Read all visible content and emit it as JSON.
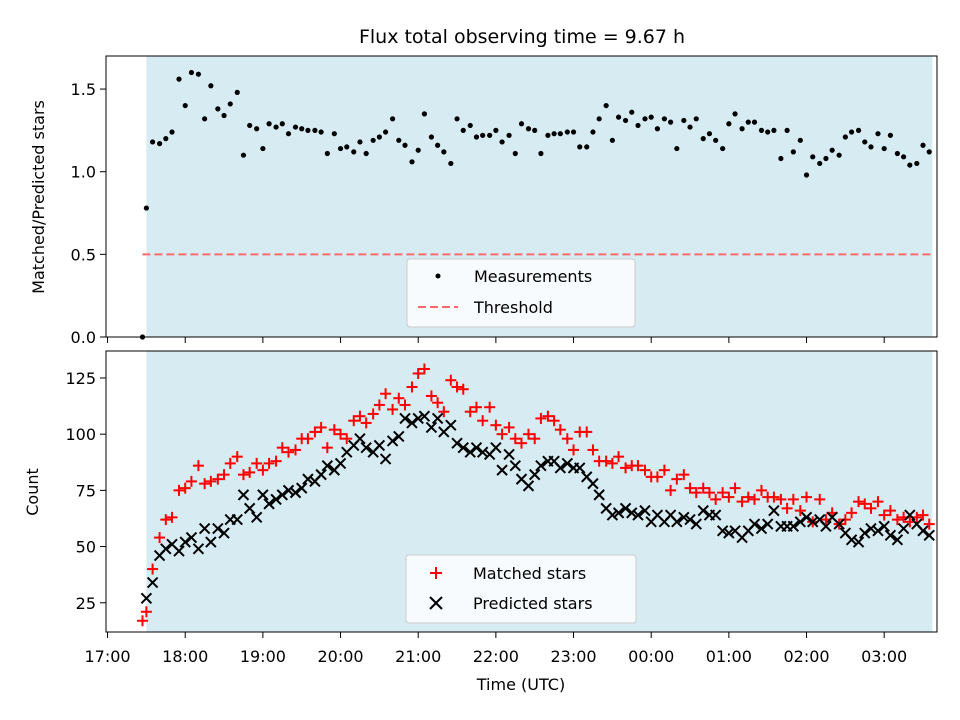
{
  "title": "Flux total observing time = 9.67 h",
  "top": {
    "ylabel": "Matched/Predicted stars",
    "ylim": [
      0,
      1.7
    ],
    "yticks": [
      "0.0",
      "0.5",
      "1.0",
      "1.5"
    ],
    "threshold": 0.5,
    "legend": {
      "measurements": "Measurements",
      "threshold": "Threshold"
    },
    "series": [
      [
        17.45,
        0.0
      ],
      [
        17.5,
        0.78
      ],
      [
        17.58,
        1.18
      ],
      [
        17.67,
        1.17
      ],
      [
        17.75,
        1.2
      ],
      [
        17.83,
        1.24
      ],
      [
        17.92,
        1.56
      ],
      [
        18.0,
        1.4
      ],
      [
        18.08,
        1.6
      ],
      [
        18.17,
        1.59
      ],
      [
        18.25,
        1.32
      ],
      [
        18.33,
        1.52
      ],
      [
        18.42,
        1.38
      ],
      [
        18.5,
        1.34
      ],
      [
        18.58,
        1.41
      ],
      [
        18.67,
        1.48
      ],
      [
        18.75,
        1.1
      ],
      [
        18.83,
        1.28
      ],
      [
        18.92,
        1.26
      ],
      [
        19.0,
        1.14
      ],
      [
        19.08,
        1.29
      ],
      [
        19.17,
        1.27
      ],
      [
        19.25,
        1.29
      ],
      [
        19.33,
        1.23
      ],
      [
        19.42,
        1.27
      ],
      [
        19.5,
        1.26
      ],
      [
        19.58,
        1.25
      ],
      [
        19.67,
        1.25
      ],
      [
        19.75,
        1.24
      ],
      [
        19.83,
        1.11
      ],
      [
        19.92,
        1.23
      ],
      [
        20.0,
        1.14
      ],
      [
        20.08,
        1.15
      ],
      [
        20.17,
        1.12
      ],
      [
        20.25,
        1.18
      ],
      [
        20.33,
        1.11
      ],
      [
        20.42,
        1.19
      ],
      [
        20.5,
        1.21
      ],
      [
        20.58,
        1.24
      ],
      [
        20.67,
        1.32
      ],
      [
        20.75,
        1.19
      ],
      [
        20.83,
        1.16
      ],
      [
        20.92,
        1.06
      ],
      [
        21.0,
        1.13
      ],
      [
        21.08,
        1.35
      ],
      [
        21.17,
        1.21
      ],
      [
        21.25,
        1.16
      ],
      [
        21.33,
        1.12
      ],
      [
        21.42,
        1.05
      ],
      [
        21.5,
        1.32
      ],
      [
        21.58,
        1.25
      ],
      [
        21.67,
        1.28
      ],
      [
        21.75,
        1.21
      ],
      [
        21.83,
        1.22
      ],
      [
        21.92,
        1.22
      ],
      [
        22.0,
        1.25
      ],
      [
        22.08,
        1.18
      ],
      [
        22.17,
        1.22
      ],
      [
        22.25,
        1.11
      ],
      [
        22.33,
        1.29
      ],
      [
        22.42,
        1.26
      ],
      [
        22.5,
        1.25
      ],
      [
        22.58,
        1.11
      ],
      [
        22.67,
        1.22
      ],
      [
        22.75,
        1.23
      ],
      [
        22.83,
        1.23
      ],
      [
        22.92,
        1.24
      ],
      [
        23.0,
        1.24
      ],
      [
        23.08,
        1.15
      ],
      [
        23.17,
        1.15
      ],
      [
        23.25,
        1.24
      ],
      [
        23.33,
        1.32
      ],
      [
        23.42,
        1.4
      ],
      [
        23.5,
        1.19
      ],
      [
        23.58,
        1.33
      ],
      [
        23.67,
        1.31
      ],
      [
        23.75,
        1.36
      ],
      [
        23.83,
        1.28
      ],
      [
        23.92,
        1.32
      ],
      [
        24.0,
        1.33
      ],
      [
        24.08,
        1.26
      ],
      [
        24.17,
        1.32
      ],
      [
        24.25,
        1.3
      ],
      [
        24.33,
        1.14
      ],
      [
        24.42,
        1.31
      ],
      [
        24.5,
        1.27
      ],
      [
        24.58,
        1.32
      ],
      [
        24.67,
        1.2
      ],
      [
        24.75,
        1.23
      ],
      [
        24.83,
        1.19
      ],
      [
        24.92,
        1.14
      ],
      [
        25.0,
        1.29
      ],
      [
        25.08,
        1.35
      ],
      [
        25.17,
        1.26
      ],
      [
        25.25,
        1.3
      ],
      [
        25.33,
        1.3
      ],
      [
        25.42,
        1.25
      ],
      [
        25.5,
        1.24
      ],
      [
        25.58,
        1.25
      ],
      [
        25.67,
        1.08
      ],
      [
        25.75,
        1.25
      ],
      [
        25.83,
        1.12
      ],
      [
        25.92,
        1.19
      ],
      [
        26.0,
        0.98
      ],
      [
        26.08,
        1.09
      ],
      [
        26.17,
        1.05
      ],
      [
        26.25,
        1.08
      ],
      [
        26.33,
        1.13
      ],
      [
        26.42,
        1.1
      ],
      [
        26.5,
        1.21
      ],
      [
        26.58,
        1.24
      ],
      [
        26.67,
        1.25
      ],
      [
        26.75,
        1.18
      ],
      [
        26.83,
        1.15
      ],
      [
        26.92,
        1.23
      ],
      [
        27.0,
        1.14
      ],
      [
        27.08,
        1.22
      ],
      [
        27.17,
        1.11
      ],
      [
        27.25,
        1.09
      ],
      [
        27.33,
        1.04
      ],
      [
        27.42,
        1.05
      ],
      [
        27.5,
        1.16
      ],
      [
        27.58,
        1.12
      ]
    ]
  },
  "chart_data": [
    {
      "type": "scatter",
      "title": "Flux total observing time = 9.67 h",
      "ylabel": "Matched/Predicted stars",
      "ylim": [
        0,
        1.7
      ],
      "legend_placement": "bottom-center",
      "series": [
        {
          "name": "Measurements",
          "ref": "top.series"
        },
        {
          "name": "Threshold",
          "type": "line",
          "y": 0.5
        }
      ]
    },
    {
      "type": "scatter",
      "xlabel": "Time (UTC)",
      "ylabel": "Count",
      "ylim": [
        12,
        137
      ],
      "legend_placement": "bottom-center",
      "series": [
        {
          "name": "Matched stars",
          "ref": "bottom.matched"
        },
        {
          "name": "Predicted stars",
          "ref": "bottom.predicted"
        }
      ]
    }
  ],
  "bottom": {
    "ylabel": "Count",
    "xlabel": "Time (UTC)",
    "ylim": [
      12,
      137
    ],
    "yticks": [
      "25",
      "50",
      "75",
      "100",
      "125"
    ],
    "legend": {
      "matched": "Matched stars",
      "predicted": "Predicted stars"
    },
    "matched": [
      [
        17.45,
        17
      ],
      [
        17.5,
        21
      ],
      [
        17.58,
        40
      ],
      [
        17.67,
        54
      ],
      [
        17.75,
        62
      ],
      [
        17.83,
        63
      ],
      [
        17.92,
        75
      ],
      [
        18.0,
        76
      ],
      [
        18.08,
        79
      ],
      [
        18.17,
        86
      ],
      [
        18.25,
        78
      ],
      [
        18.33,
        79
      ],
      [
        18.42,
        80
      ],
      [
        18.5,
        82
      ],
      [
        18.58,
        87
      ],
      [
        18.67,
        90
      ],
      [
        18.75,
        82
      ],
      [
        18.83,
        83
      ],
      [
        18.92,
        87
      ],
      [
        19.0,
        84
      ],
      [
        19.08,
        87
      ],
      [
        19.17,
        88
      ],
      [
        19.25,
        94
      ],
      [
        19.33,
        92
      ],
      [
        19.42,
        93
      ],
      [
        19.5,
        98
      ],
      [
        19.58,
        98
      ],
      [
        19.67,
        101
      ],
      [
        19.75,
        103
      ],
      [
        19.83,
        94
      ],
      [
        19.92,
        102
      ],
      [
        20.0,
        100
      ],
      [
        20.08,
        98
      ],
      [
        20.17,
        106
      ],
      [
        20.25,
        108
      ],
      [
        20.33,
        105
      ],
      [
        20.42,
        109
      ],
      [
        20.5,
        113
      ],
      [
        20.58,
        118
      ],
      [
        20.67,
        111
      ],
      [
        20.75,
        116
      ],
      [
        20.83,
        113
      ],
      [
        20.92,
        121
      ],
      [
        21.0,
        127
      ],
      [
        21.08,
        129
      ],
      [
        21.17,
        117
      ],
      [
        21.25,
        114
      ],
      [
        21.33,
        110
      ],
      [
        21.42,
        124
      ],
      [
        21.5,
        121
      ],
      [
        21.58,
        120
      ],
      [
        21.67,
        110
      ],
      [
        21.75,
        112
      ],
      [
        21.83,
        106
      ],
      [
        21.92,
        112
      ],
      [
        22.0,
        104
      ],
      [
        22.08,
        100
      ],
      [
        22.17,
        103
      ],
      [
        22.25,
        98
      ],
      [
        22.33,
        96
      ],
      [
        22.42,
        100
      ],
      [
        22.5,
        98
      ],
      [
        22.58,
        107
      ],
      [
        22.67,
        108
      ],
      [
        22.75,
        106
      ],
      [
        22.83,
        102
      ],
      [
        22.92,
        98
      ],
      [
        23.0,
        93
      ],
      [
        23.08,
        101
      ],
      [
        23.17,
        101
      ],
      [
        23.25,
        93
      ],
      [
        23.33,
        88
      ],
      [
        23.42,
        88
      ],
      [
        23.5,
        87
      ],
      [
        23.58,
        90
      ],
      [
        23.67,
        85
      ],
      [
        23.75,
        86
      ],
      [
        23.83,
        86
      ],
      [
        23.92,
        84
      ],
      [
        24.0,
        81
      ],
      [
        24.08,
        81
      ],
      [
        24.17,
        84
      ],
      [
        24.25,
        75
      ],
      [
        24.33,
        80
      ],
      [
        24.42,
        82
      ],
      [
        24.5,
        76
      ],
      [
        24.58,
        74
      ],
      [
        24.67,
        76
      ],
      [
        24.75,
        74
      ],
      [
        24.83,
        71
      ],
      [
        24.92,
        74
      ],
      [
        25.0,
        72
      ],
      [
        25.08,
        76
      ],
      [
        25.17,
        70
      ],
      [
        25.25,
        72
      ],
      [
        25.33,
        71
      ],
      [
        25.42,
        75
      ],
      [
        25.5,
        72
      ],
      [
        25.58,
        72
      ],
      [
        25.67,
        71
      ],
      [
        25.75,
        67
      ],
      [
        25.83,
        71
      ],
      [
        25.92,
        66
      ],
      [
        26.0,
        72
      ],
      [
        26.08,
        61
      ],
      [
        26.17,
        71
      ],
      [
        26.25,
        62
      ],
      [
        26.33,
        65
      ],
      [
        26.42,
        60
      ],
      [
        26.5,
        62
      ],
      [
        26.58,
        65
      ],
      [
        26.67,
        70
      ],
      [
        26.75,
        69
      ],
      [
        26.83,
        67
      ],
      [
        26.92,
        70
      ],
      [
        27.0,
        64
      ],
      [
        27.08,
        66
      ],
      [
        27.17,
        62
      ],
      [
        27.25,
        63
      ],
      [
        27.33,
        61
      ],
      [
        27.42,
        63
      ],
      [
        27.5,
        64
      ],
      [
        27.58,
        60
      ]
    ],
    "predicted": [
      [
        17.5,
        27
      ],
      [
        17.58,
        34
      ],
      [
        17.67,
        46
      ],
      [
        17.75,
        49
      ],
      [
        17.83,
        51
      ],
      [
        17.92,
        48
      ],
      [
        18.0,
        52
      ],
      [
        18.08,
        54
      ],
      [
        18.17,
        49
      ],
      [
        18.25,
        58
      ],
      [
        18.33,
        52
      ],
      [
        18.42,
        58
      ],
      [
        18.5,
        56
      ],
      [
        18.58,
        62
      ],
      [
        18.67,
        62
      ],
      [
        18.75,
        73
      ],
      [
        18.83,
        67
      ],
      [
        18.92,
        63
      ],
      [
        19.0,
        73
      ],
      [
        19.08,
        69
      ],
      [
        19.17,
        71
      ],
      [
        19.25,
        73
      ],
      [
        19.33,
        75
      ],
      [
        19.42,
        74
      ],
      [
        19.5,
        76
      ],
      [
        19.58,
        80
      ],
      [
        19.67,
        79
      ],
      [
        19.75,
        82
      ],
      [
        19.83,
        86
      ],
      [
        19.92,
        84
      ],
      [
        20.0,
        87
      ],
      [
        20.08,
        92
      ],
      [
        20.17,
        95
      ],
      [
        20.25,
        98
      ],
      [
        20.33,
        94
      ],
      [
        20.42,
        92
      ],
      [
        20.5,
        95
      ],
      [
        20.58,
        89
      ],
      [
        20.67,
        97
      ],
      [
        20.75,
        99
      ],
      [
        20.83,
        107
      ],
      [
        20.92,
        105
      ],
      [
        21.0,
        107
      ],
      [
        21.08,
        108
      ],
      [
        21.17,
        103
      ],
      [
        21.25,
        107
      ],
      [
        21.33,
        101
      ],
      [
        21.42,
        104
      ],
      [
        21.5,
        96
      ],
      [
        21.58,
        94
      ],
      [
        21.67,
        92
      ],
      [
        21.75,
        94
      ],
      [
        21.83,
        92
      ],
      [
        21.92,
        91
      ],
      [
        22.0,
        94
      ],
      [
        22.08,
        84
      ],
      [
        22.17,
        91
      ],
      [
        22.25,
        86
      ],
      [
        22.33,
        80
      ],
      [
        22.42,
        77
      ],
      [
        22.5,
        82
      ],
      [
        22.58,
        86
      ],
      [
        22.67,
        88
      ],
      [
        22.75,
        88
      ],
      [
        22.83,
        85
      ],
      [
        22.92,
        87
      ],
      [
        23.0,
        85
      ],
      [
        23.08,
        85
      ],
      [
        23.17,
        81
      ],
      [
        23.25,
        78
      ],
      [
        23.33,
        73
      ],
      [
        23.42,
        67
      ],
      [
        23.5,
        64
      ],
      [
        23.58,
        65
      ],
      [
        23.67,
        67
      ],
      [
        23.75,
        65
      ],
      [
        23.83,
        64
      ],
      [
        23.92,
        66
      ],
      [
        24.0,
        61
      ],
      [
        24.08,
        64
      ],
      [
        24.17,
        61
      ],
      [
        24.25,
        64
      ],
      [
        24.33,
        61
      ],
      [
        24.42,
        63
      ],
      [
        24.5,
        62
      ],
      [
        24.58,
        60
      ],
      [
        24.67,
        66
      ],
      [
        24.75,
        64
      ],
      [
        24.83,
        64
      ],
      [
        24.92,
        57
      ],
      [
        25.0,
        56
      ],
      [
        25.08,
        57
      ],
      [
        25.17,
        54
      ],
      [
        25.25,
        57
      ],
      [
        25.33,
        60
      ],
      [
        25.42,
        58
      ],
      [
        25.5,
        60
      ],
      [
        25.58,
        66
      ],
      [
        25.67,
        59
      ],
      [
        25.75,
        59
      ],
      [
        25.83,
        59
      ],
      [
        25.92,
        61
      ],
      [
        26.0,
        63
      ],
      [
        26.08,
        61
      ],
      [
        26.17,
        62
      ],
      [
        26.25,
        59
      ],
      [
        26.33,
        63
      ],
      [
        26.42,
        60
      ],
      [
        26.5,
        56
      ],
      [
        26.58,
        53
      ],
      [
        26.67,
        52
      ],
      [
        26.75,
        56
      ],
      [
        26.83,
        58
      ],
      [
        26.92,
        57
      ],
      [
        27.0,
        59
      ],
      [
        27.08,
        55
      ],
      [
        27.17,
        53
      ],
      [
        27.25,
        58
      ],
      [
        27.33,
        64
      ],
      [
        27.42,
        60
      ],
      [
        27.5,
        57
      ],
      [
        27.58,
        55
      ]
    ]
  },
  "xaxis": {
    "xlim": [
      16.98,
      27.68
    ],
    "ticks": [
      {
        "t": 17,
        "label": "17:00"
      },
      {
        "t": 18,
        "label": "18:00"
      },
      {
        "t": 19,
        "label": "19:00"
      },
      {
        "t": 20,
        "label": "20:00"
      },
      {
        "t": 21,
        "label": "21:00"
      },
      {
        "t": 22,
        "label": "22:00"
      },
      {
        "t": 23,
        "label": "23:00"
      },
      {
        "t": 24,
        "label": "00:00"
      },
      {
        "t": 25,
        "label": "01:00"
      },
      {
        "t": 26,
        "label": "02:00"
      },
      {
        "t": 27,
        "label": "03:00"
      }
    ],
    "shade": [
      17.5,
      27.62
    ]
  },
  "colors": {
    "shade": "#add8e6",
    "threshold": "#ff6b6b",
    "matched": "#ff0000",
    "predicted": "#000000",
    "measurement": "#000000"
  }
}
